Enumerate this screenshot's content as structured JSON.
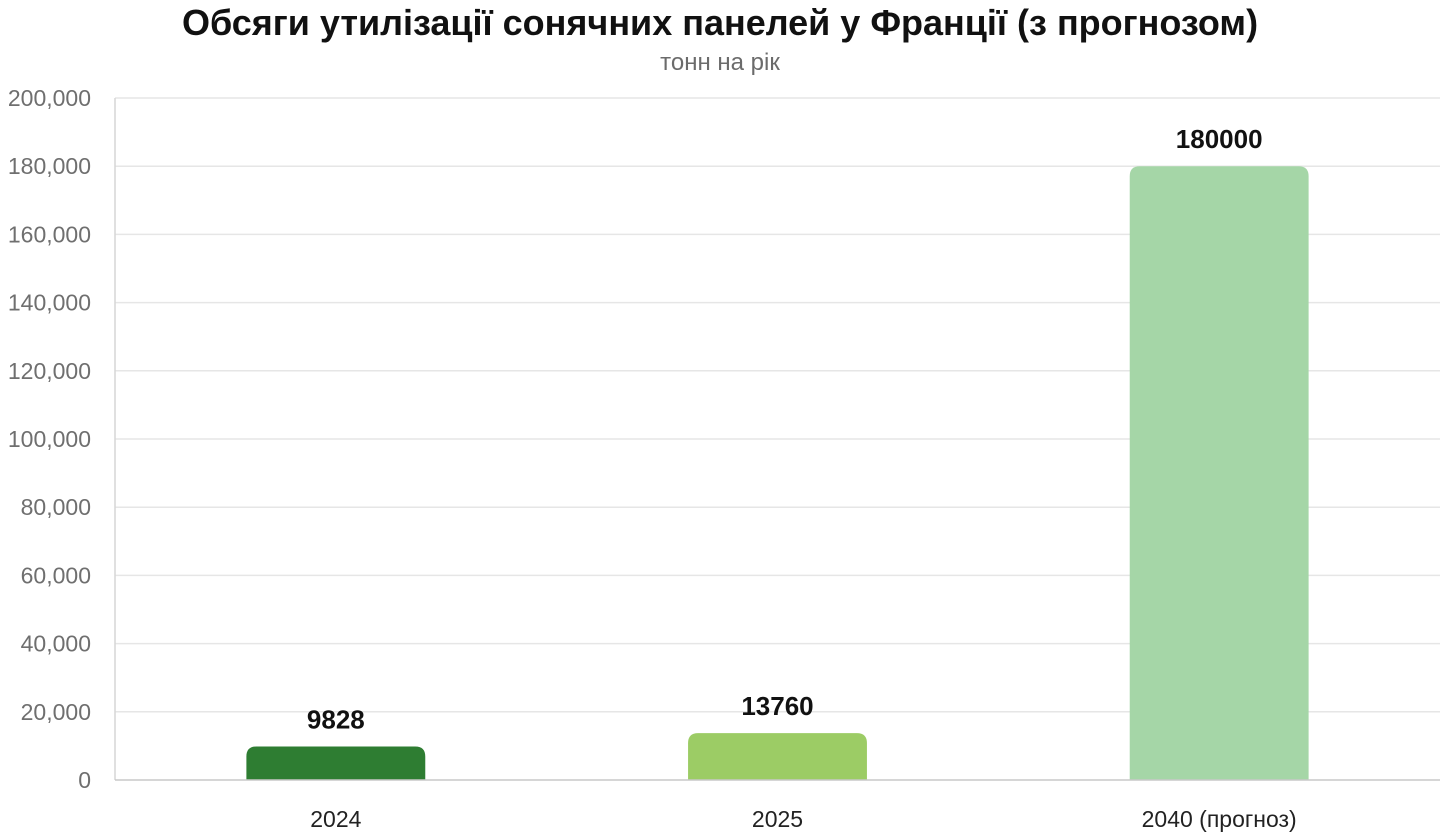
{
  "chart_data": {
    "type": "bar",
    "title": "Обсяги утилізації сонячних панелей у Франції (з прогнозом)",
    "subtitle": "тонн на рік",
    "categories": [
      "2024",
      "2025",
      "2040 (прогноз)"
    ],
    "values": [
      9828,
      13760,
      180000
    ],
    "data_labels": [
      "9828",
      "13760",
      "180000"
    ],
    "colors": [
      "#2e7d32",
      "#9ccc65",
      "#a5d6a7"
    ],
    "ylim": [
      0,
      200000
    ],
    "y_ticks": [
      0,
      20000,
      40000,
      60000,
      80000,
      100000,
      120000,
      140000,
      160000,
      180000,
      200000
    ],
    "y_tick_labels": [
      "0",
      "20,000",
      "40,000",
      "60,000",
      "80,000",
      "100,000",
      "120,000",
      "140,000",
      "160,000",
      "180,000",
      "200,000"
    ],
    "grid": true,
    "legend": "none"
  }
}
